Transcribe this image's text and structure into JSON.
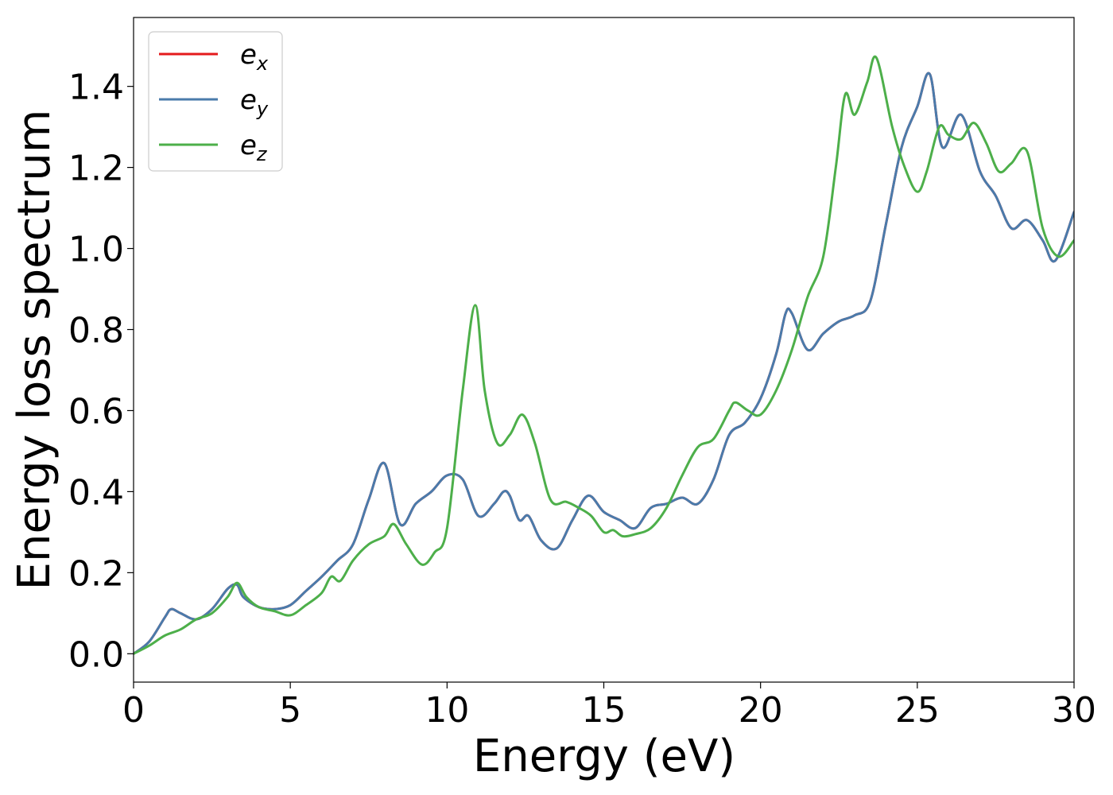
{
  "chart_data": {
    "type": "line",
    "title": "",
    "xlabel": "Energy (eV)",
    "ylabel": "Energy loss spectrum",
    "xlim": [
      0,
      30
    ],
    "ylim": [
      -0.07,
      1.57
    ],
    "xticks": [
      0,
      5,
      10,
      15,
      20,
      25,
      30
    ],
    "xtick_labels": [
      "0",
      "5",
      "10",
      "15",
      "20",
      "25",
      "30"
    ],
    "yticks": [
      0.0,
      0.2,
      0.4,
      0.6,
      0.8,
      1.0,
      1.2,
      1.4
    ],
    "ytick_labels": [
      "0.0",
      "0.2",
      "0.4",
      "0.6",
      "0.8",
      "1.0",
      "1.2",
      "1.4"
    ],
    "grid": false,
    "legend_position": "top-left",
    "series": [
      {
        "name": "e_x",
        "label_main": "e",
        "label_sub": "x",
        "color": "#e41a1c",
        "x": [
          0,
          0.5,
          1,
          1.2,
          1.5,
          2,
          2.5,
          3,
          3.3,
          3.5,
          4,
          4.5,
          5,
          5.5,
          6,
          6.5,
          7,
          7.5,
          8,
          8.5,
          9,
          9.5,
          10,
          10.5,
          11,
          11.5,
          11.8,
          12,
          12.3,
          12.6,
          13,
          13.5,
          14,
          14.5,
          15,
          15.5,
          16,
          16.5,
          17,
          17.5,
          18,
          18.5,
          19,
          19.5,
          20,
          20.5,
          20.8,
          21,
          21.5,
          22,
          22.5,
          23,
          23.5,
          24,
          24.5,
          25,
          25.4,
          25.8,
          26.4,
          27,
          27.5,
          28,
          28.5,
          29,
          29.4,
          30
        ],
        "y": [
          0.0,
          0.03,
          0.09,
          0.11,
          0.1,
          0.085,
          0.11,
          0.16,
          0.17,
          0.14,
          0.115,
          0.11,
          0.12,
          0.155,
          0.19,
          0.23,
          0.27,
          0.38,
          0.47,
          0.32,
          0.37,
          0.4,
          0.44,
          0.43,
          0.34,
          0.37,
          0.4,
          0.39,
          0.33,
          0.34,
          0.28,
          0.26,
          0.33,
          0.39,
          0.35,
          0.33,
          0.31,
          0.36,
          0.37,
          0.385,
          0.37,
          0.43,
          0.54,
          0.57,
          0.63,
          0.74,
          0.84,
          0.84,
          0.75,
          0.79,
          0.82,
          0.835,
          0.87,
          1.06,
          1.25,
          1.35,
          1.43,
          1.25,
          1.33,
          1.19,
          1.13,
          1.05,
          1.07,
          1.02,
          0.97,
          1.09
        ]
      },
      {
        "name": "e_y",
        "label_main": "e",
        "label_sub": "y",
        "color": "#4a7bab",
        "x": [
          0,
          0.5,
          1,
          1.2,
          1.5,
          2,
          2.5,
          3,
          3.3,
          3.5,
          4,
          4.5,
          5,
          5.5,
          6,
          6.5,
          7,
          7.5,
          8,
          8.5,
          9,
          9.5,
          10,
          10.5,
          11,
          11.5,
          11.8,
          12,
          12.3,
          12.6,
          13,
          13.5,
          14,
          14.5,
          15,
          15.5,
          16,
          16.5,
          17,
          17.5,
          18,
          18.5,
          19,
          19.5,
          20,
          20.5,
          20.8,
          21,
          21.5,
          22,
          22.5,
          23,
          23.5,
          24,
          24.5,
          25,
          25.4,
          25.8,
          26.4,
          27,
          27.5,
          28,
          28.5,
          29,
          29.4,
          30
        ],
        "y": [
          0.0,
          0.03,
          0.09,
          0.11,
          0.1,
          0.085,
          0.11,
          0.16,
          0.17,
          0.14,
          0.115,
          0.11,
          0.12,
          0.155,
          0.19,
          0.23,
          0.27,
          0.38,
          0.47,
          0.32,
          0.37,
          0.4,
          0.44,
          0.43,
          0.34,
          0.37,
          0.4,
          0.39,
          0.33,
          0.34,
          0.28,
          0.26,
          0.33,
          0.39,
          0.35,
          0.33,
          0.31,
          0.36,
          0.37,
          0.385,
          0.37,
          0.43,
          0.54,
          0.57,
          0.63,
          0.74,
          0.84,
          0.84,
          0.75,
          0.79,
          0.82,
          0.835,
          0.87,
          1.06,
          1.25,
          1.35,
          1.43,
          1.25,
          1.33,
          1.19,
          1.13,
          1.05,
          1.07,
          1.02,
          0.97,
          1.09
        ]
      },
      {
        "name": "e_z",
        "label_main": "e",
        "label_sub": "z",
        "color": "#4daf4a",
        "x": [
          0,
          0.5,
          1,
          1.5,
          2,
          2.5,
          3,
          3.3,
          3.6,
          4,
          4.5,
          5,
          5.5,
          6,
          6.3,
          6.6,
          7,
          7.5,
          8,
          8.3,
          8.7,
          9.2,
          9.6,
          10,
          10.5,
          10.9,
          11.2,
          11.6,
          12,
          12.4,
          12.8,
          13.3,
          13.8,
          14.2,
          14.6,
          15,
          15.3,
          15.6,
          16,
          16.5,
          17,
          17.5,
          18,
          18.5,
          19,
          19.2,
          19.6,
          20,
          20.5,
          21,
          21.5,
          22,
          22.4,
          22.7,
          23,
          23.4,
          23.7,
          24.2,
          24.6,
          25,
          25.3,
          25.7,
          26,
          26.4,
          26.8,
          27.2,
          27.6,
          28,
          28.5,
          29,
          29.5,
          30
        ],
        "y": [
          0.0,
          0.02,
          0.045,
          0.06,
          0.085,
          0.1,
          0.14,
          0.175,
          0.14,
          0.115,
          0.105,
          0.095,
          0.12,
          0.15,
          0.19,
          0.18,
          0.23,
          0.27,
          0.29,
          0.32,
          0.27,
          0.22,
          0.25,
          0.31,
          0.65,
          0.86,
          0.65,
          0.52,
          0.54,
          0.59,
          0.52,
          0.38,
          0.375,
          0.36,
          0.34,
          0.3,
          0.305,
          0.29,
          0.295,
          0.31,
          0.36,
          0.44,
          0.51,
          0.53,
          0.6,
          0.62,
          0.6,
          0.59,
          0.65,
          0.75,
          0.88,
          0.98,
          1.2,
          1.38,
          1.33,
          1.41,
          1.47,
          1.3,
          1.2,
          1.14,
          1.19,
          1.3,
          1.28,
          1.27,
          1.31,
          1.26,
          1.19,
          1.21,
          1.24,
          1.05,
          0.98,
          1.02
        ]
      }
    ]
  }
}
